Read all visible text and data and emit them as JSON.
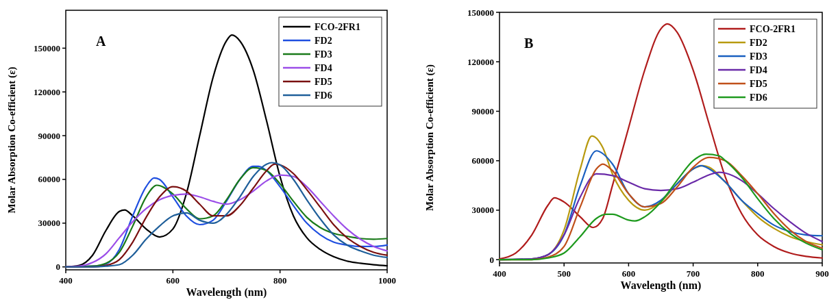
{
  "chart_data": [
    {
      "type": "line",
      "title": "A",
      "xlabel": "Wavelength (nm)",
      "ylabel": "Molar Absorption Co-efficient (ε)",
      "xlim": [
        400,
        1000
      ],
      "xticks": [
        400,
        600,
        800,
        1000
      ],
      "ylim": [
        -2000,
        176000
      ],
      "yticks": [
        0,
        30000,
        60000,
        90000,
        120000,
        150000
      ],
      "legend": "top right",
      "grid": false,
      "marker": "none",
      "line_style": "solid",
      "series": [
        {
          "name": "FCO-2FR1",
          "color": "#000000",
          "x": [
            400,
            425,
            450,
            475,
            500,
            510,
            525,
            550,
            575,
            600,
            625,
            650,
            675,
            700,
            710,
            725,
            750,
            775,
            800,
            825,
            850,
            875,
            900,
            925,
            950,
            975,
            1000
          ],
          "values": [
            0,
            1000,
            8000,
            25000,
            38000,
            39000,
            35000,
            26000,
            20500,
            26000,
            50000,
            90000,
            130000,
            155000,
            159000,
            155000,
            135000,
            100000,
            62000,
            35000,
            20000,
            12000,
            7000,
            4000,
            2500,
            1500,
            800
          ]
        },
        {
          "name": "FD2",
          "color": "#1f4fe0",
          "x": [
            400,
            450,
            475,
            500,
            525,
            550,
            565,
            575,
            600,
            625,
            650,
            675,
            700,
            725,
            750,
            760,
            775,
            800,
            825,
            850,
            875,
            900,
            925,
            950,
            975,
            1000
          ],
          "values": [
            0,
            500,
            2000,
            12000,
            35000,
            55000,
            61000,
            60000,
            48000,
            35000,
            29000,
            32000,
            45000,
            60000,
            69000,
            69000,
            66000,
            55000,
            42000,
            30000,
            22000,
            17000,
            15000,
            14000,
            14000,
            15000
          ]
        },
        {
          "name": "FD3",
          "color": "#1a7a1a",
          "x": [
            400,
            450,
            475,
            500,
            525,
            550,
            570,
            600,
            625,
            650,
            675,
            700,
            725,
            750,
            775,
            800,
            825,
            850,
            875,
            900,
            925,
            950,
            975,
            1000
          ],
          "values": [
            0,
            500,
            2500,
            10000,
            28000,
            48000,
            56000,
            50000,
            40000,
            33000,
            35000,
            46000,
            60000,
            68000,
            66000,
            57000,
            45000,
            34000,
            27000,
            23000,
            21000,
            19500,
            19000,
            19500
          ]
        },
        {
          "name": "FD4",
          "color": "#9b4de8",
          "x": [
            400,
            425,
            450,
            475,
            500,
            525,
            550,
            575,
            600,
            625,
            650,
            675,
            700,
            725,
            750,
            775,
            800,
            825,
            850,
            875,
            900,
            925,
            950,
            975,
            1000
          ],
          "values": [
            0,
            500,
            3000,
            9000,
            20000,
            31000,
            40000,
            46000,
            49000,
            50000,
            48000,
            45000,
            43000,
            46000,
            52000,
            59000,
            63000,
            62000,
            55000,
            45000,
            35000,
            26000,
            19000,
            14000,
            11000
          ]
        },
        {
          "name": "FD5",
          "color": "#7a1010",
          "x": [
            400,
            450,
            475,
            500,
            525,
            550,
            575,
            600,
            625,
            650,
            675,
            700,
            725,
            750,
            775,
            790,
            800,
            825,
            850,
            875,
            900,
            925,
            950,
            975,
            1000
          ],
          "values": [
            0,
            0,
            1000,
            5000,
            17000,
            34000,
            48000,
            55000,
            52000,
            43000,
            35000,
            35000,
            42000,
            54000,
            66000,
            70500,
            70000,
            64000,
            53000,
            41000,
            29000,
            20000,
            14000,
            10000,
            8000
          ]
        },
        {
          "name": "FD6",
          "color": "#1f5f9a",
          "x": [
            400,
            450,
            475,
            500,
            525,
            550,
            575,
            600,
            625,
            650,
            675,
            700,
            725,
            750,
            775,
            785,
            800,
            825,
            850,
            875,
            900,
            925,
            950,
            975,
            1000
          ],
          "values": [
            0,
            0,
            500,
            1500,
            8000,
            19000,
            28000,
            35000,
            37000,
            32000,
            30000,
            36000,
            48000,
            62000,
            70500,
            71500,
            70000,
            60000,
            46000,
            33000,
            22000,
            15000,
            11000,
            8000,
            6500
          ]
        }
      ]
    },
    {
      "type": "line",
      "title": "B",
      "xlabel": "Wavelength (nm)",
      "ylabel": "Molar Absorption Co-efficient (ε)",
      "xlim": [
        400,
        900
      ],
      "xticks": [
        400,
        500,
        600,
        700,
        800,
        900
      ],
      "ylim": [
        -2000,
        150000
      ],
      "yticks": [
        0,
        30000,
        60000,
        90000,
        120000,
        150000
      ],
      "legend": "top right",
      "grid": false,
      "marker": "none",
      "line_style": "solid",
      "series": [
        {
          "name": "FCO-2FR1",
          "color": "#b01c1c",
          "x": [
            400,
            425,
            450,
            475,
            485,
            500,
            525,
            545,
            560,
            575,
            600,
            625,
            650,
            660,
            675,
            700,
            725,
            750,
            775,
            800,
            825,
            850,
            875,
            900
          ],
          "values": [
            500,
            4000,
            15000,
            33000,
            37500,
            35000,
            26000,
            19500,
            25000,
            45000,
            80000,
            115000,
            140000,
            143000,
            138000,
            115000,
            82000,
            50000,
            28000,
            15000,
            8000,
            4000,
            2000,
            1000
          ]
        },
        {
          "name": "FD2",
          "color": "#b89a10",
          "x": [
            400,
            450,
            475,
            500,
            525,
            543,
            560,
            575,
            600,
            625,
            650,
            675,
            700,
            715,
            725,
            750,
            775,
            800,
            825,
            850,
            875,
            900
          ],
          "values": [
            0,
            500,
            3000,
            18000,
            55000,
            75000,
            68000,
            52000,
            36000,
            30000,
            35000,
            46000,
            55000,
            57000,
            56000,
            47000,
            36000,
            26000,
            19000,
            14000,
            11000,
            9000
          ]
        },
        {
          "name": "FD3",
          "color": "#1a5fc0",
          "x": [
            400,
            450,
            475,
            500,
            525,
            550,
            575,
            600,
            625,
            650,
            675,
            700,
            712,
            725,
            750,
            775,
            800,
            825,
            850,
            875,
            900
          ],
          "values": [
            0,
            500,
            3000,
            15000,
            45000,
            66000,
            58000,
            40000,
            32000,
            36000,
            46000,
            55000,
            57000,
            55000,
            47000,
            36000,
            28000,
            21000,
            17000,
            15000,
            14500
          ]
        },
        {
          "name": "FD4",
          "color": "#6a2aa8",
          "x": [
            400,
            450,
            475,
            500,
            525,
            550,
            575,
            600,
            625,
            650,
            675,
            700,
            725,
            740,
            750,
            775,
            800,
            825,
            850,
            875,
            900
          ],
          "values": [
            0,
            500,
            3000,
            15000,
            38000,
            52000,
            51000,
            47000,
            43000,
            42000,
            43000,
            47000,
            51500,
            53000,
            52500,
            48000,
            40000,
            31000,
            23000,
            16000,
            11000
          ]
        },
        {
          "name": "FD5",
          "color": "#c0501a",
          "x": [
            400,
            450,
            475,
            500,
            525,
            550,
            560,
            575,
            600,
            625,
            650,
            675,
            700,
            725,
            750,
            775,
            800,
            825,
            850,
            875,
            900
          ],
          "values": [
            0,
            0,
            1500,
            8000,
            32000,
            55000,
            58000,
            54000,
            40000,
            32000,
            34000,
            44000,
            56000,
            62000,
            60000,
            51000,
            40000,
            28000,
            18000,
            11000,
            7000
          ]
        },
        {
          "name": "FD6",
          "color": "#1e9a1e",
          "x": [
            400,
            450,
            475,
            500,
            525,
            550,
            565,
            575,
            600,
            610,
            625,
            650,
            675,
            700,
            720,
            740,
            750,
            775,
            800,
            825,
            850,
            875,
            900
          ],
          "values": [
            0,
            0,
            1000,
            4000,
            14000,
            25000,
            27500,
            27500,
            24000,
            23500,
            26000,
            35000,
            48000,
            60000,
            64000,
            63000,
            60000,
            50000,
            37000,
            25000,
            16000,
            10000,
            6000
          ]
        }
      ]
    }
  ]
}
